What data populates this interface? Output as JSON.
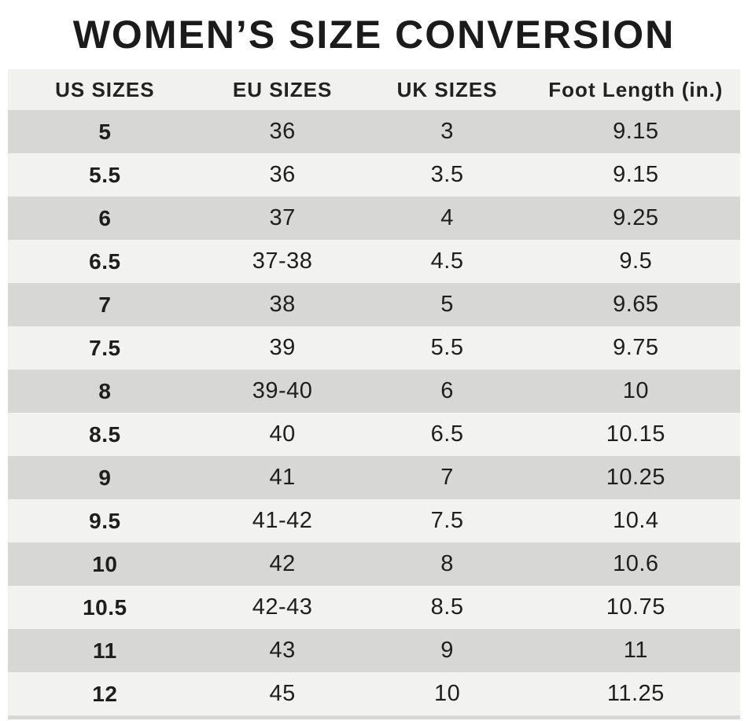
{
  "title": "WOMEN’S SIZE CONVERSION",
  "colors": {
    "background": "#ffffff",
    "header_row_bg": "#f1f1ef",
    "row_dark_bg": "#d7d8d6",
    "row_light_bg": "#f2f2f0",
    "text": "#1e1e1c",
    "title_text": "#1b1b1b"
  },
  "chart_data": {
    "type": "table",
    "title": "WOMEN’S SIZE CONVERSION",
    "columns": [
      "US SIZES",
      "EU SIZES",
      "UK SIZES",
      "Foot Length (in.)"
    ],
    "column_keys": [
      "us-size",
      "eu-size",
      "uk-size",
      "foot-length"
    ],
    "rows": [
      [
        "5",
        "36",
        "3",
        "9.15"
      ],
      [
        "5.5",
        "36",
        "3.5",
        "9.15"
      ],
      [
        "6",
        "37",
        "4",
        "9.25"
      ],
      [
        "6.5",
        "37-38",
        "4.5",
        "9.5"
      ],
      [
        "7",
        "38",
        "5",
        "9.65"
      ],
      [
        "7.5",
        "39",
        "5.5",
        "9.75"
      ],
      [
        "8",
        "39-40",
        "6",
        "10"
      ],
      [
        "8.5",
        "40",
        "6.5",
        "10.15"
      ],
      [
        "9",
        "41",
        "7",
        "10.25"
      ],
      [
        "9.5",
        "41-42",
        "7.5",
        "10.4"
      ],
      [
        "10",
        "42",
        "8",
        "10.6"
      ],
      [
        "10.5",
        "42-43",
        "8.5",
        "10.75"
      ],
      [
        "11",
        "43",
        "9",
        "11"
      ],
      [
        "12",
        "45",
        "10",
        "11.25"
      ]
    ],
    "layout": {
      "row_striping": "alternating, first data row dark",
      "first_column_bold": true,
      "grid": "off",
      "legend": "none"
    }
  }
}
